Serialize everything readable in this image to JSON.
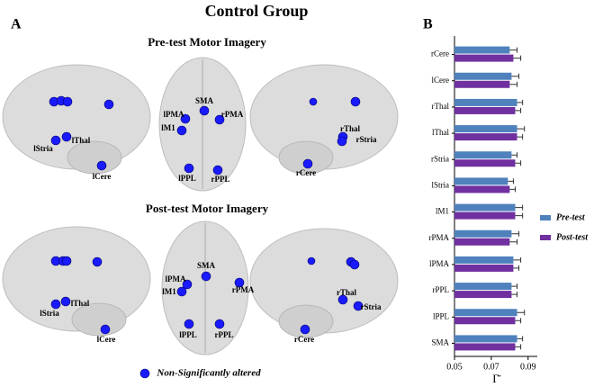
{
  "figure_title": "Control Group",
  "panel_a": {
    "label": "A",
    "rows": [
      {
        "title": "Pre-test Motor Imagery",
        "nodes": [
          "lStria",
          "lThal",
          "lCere",
          "SMA",
          "lPMA",
          "lM1",
          "rPMA",
          "lPPL",
          "rPPL",
          "rThal",
          "rStria",
          "rCere"
        ]
      },
      {
        "title": "Post-test Motor Imagery",
        "nodes": [
          "lStria",
          "lThal",
          "lCere",
          "SMA",
          "lPMA",
          "lM1",
          "rPMA",
          "lPPL",
          "rPPL",
          "rThal",
          "rStria",
          "rCere"
        ]
      }
    ],
    "legend": "Non-Significantly altered"
  },
  "chart_data": {
    "type": "bar",
    "orientation": "horizontal",
    "panel_label": "B",
    "categories": [
      "rCere",
      "lCere",
      "rThal",
      "lThal",
      "rStria",
      "lStria",
      "lM1",
      "rPMA",
      "lPMA",
      "rPPL",
      "lPPL",
      "SMA"
    ],
    "series": [
      {
        "name": "Pre-test",
        "color": "#4f81bd",
        "values": [
          0.08,
          0.081,
          0.084,
          0.084,
          0.081,
          0.079,
          0.083,
          0.081,
          0.082,
          0.081,
          0.084,
          0.084
        ],
        "errors": [
          0.004,
          0.004,
          0.003,
          0.004,
          0.003,
          0.003,
          0.004,
          0.004,
          0.004,
          0.003,
          0.004,
          0.003
        ]
      },
      {
        "name": "Post-test",
        "color": "#7030a0",
        "values": [
          0.082,
          0.08,
          0.083,
          0.084,
          0.083,
          0.08,
          0.083,
          0.08,
          0.082,
          0.081,
          0.083,
          0.083
        ],
        "errors": [
          0.004,
          0.004,
          0.003,
          0.003,
          0.003,
          0.003,
          0.004,
          0.004,
          0.003,
          0.003,
          0.003,
          0.003
        ]
      }
    ],
    "xlim": [
      0.05,
      0.095
    ],
    "xticks": [
      0.05,
      0.07,
      0.09
    ],
    "x_label": "Γ̄"
  }
}
